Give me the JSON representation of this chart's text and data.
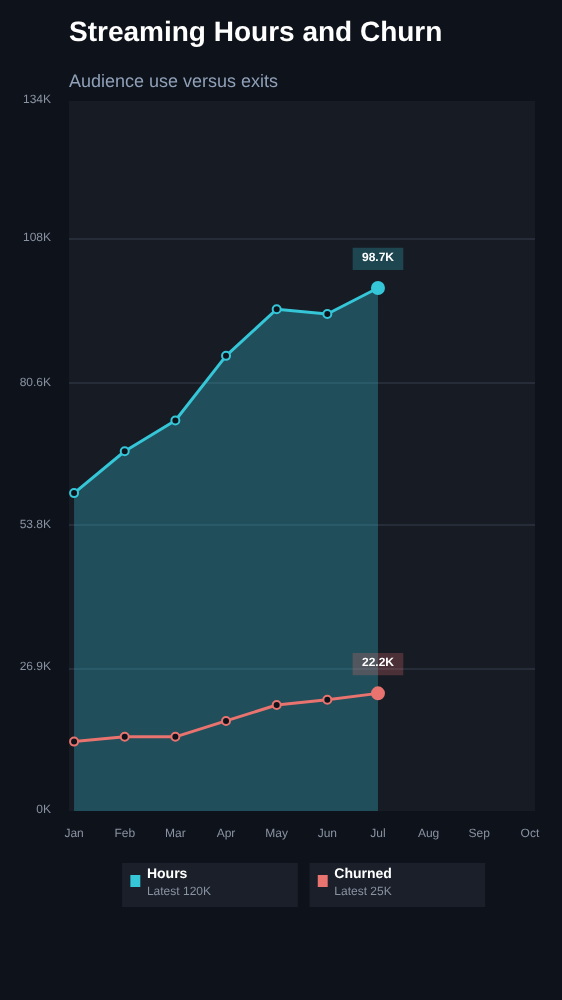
{
  "chart_data": {
    "type": "line",
    "title": "Streaming Hours and Churn",
    "subtitle": "Audience use versus exits",
    "categories": [
      "Jan",
      "Feb",
      "Mar",
      "Apr",
      "May",
      "Jun",
      "Jul",
      "Aug",
      "Sep",
      "Oct"
    ],
    "ylim": [
      0,
      134
    ],
    "yticks": [
      {
        "value": 0,
        "label": "0K"
      },
      {
        "value": 26.9,
        "label": "26.9K"
      },
      {
        "value": 53.8,
        "label": "53.8K"
      },
      {
        "value": 80.6,
        "label": "80.6K"
      },
      {
        "value": 108,
        "label": "108K"
      },
      {
        "value": 134,
        "label": "134K"
      }
    ],
    "series": [
      {
        "name": "Hours",
        "type": "area",
        "color": "#35c6d8",
        "values": [
          60.0,
          67.9,
          73.7,
          85.9,
          94.7,
          93.8,
          98.7,
          null,
          null,
          null
        ],
        "value_labels": [
          null,
          null,
          null,
          null,
          null,
          null,
          "98.7K",
          null,
          null,
          null
        ]
      },
      {
        "name": "Churned",
        "color": "#e8736f",
        "values": [
          13.1,
          14.0,
          14.0,
          17.0,
          20.0,
          21.0,
          22.2,
          null,
          null,
          null
        ],
        "value_labels": [
          null,
          null,
          null,
          null,
          null,
          null,
          "22.2K",
          null,
          null,
          null
        ]
      }
    ],
    "annotations": [
      "Latest 120K",
      "Latest 25K"
    ],
    "marker": "circle",
    "line_style": "solid",
    "grid": "y",
    "legend": "bottom"
  }
}
